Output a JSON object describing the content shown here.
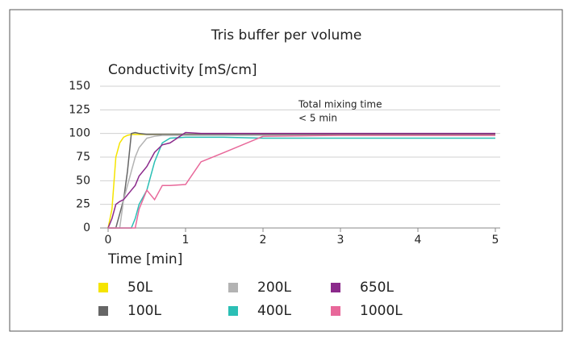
{
  "chart_data": {
    "type": "line",
    "title": "Tris buffer per volume",
    "y_label": "Conductivity [mS/cm]",
    "x_label": "Time [min]",
    "annotation": [
      "Total mixing time",
      "< 5 min"
    ],
    "x": [
      0,
      0.05,
      0.1,
      0.15,
      0.2,
      0.25,
      0.3,
      0.35,
      0.4,
      0.5,
      0.6,
      0.7,
      0.8,
      1,
      1.2,
      1.5,
      2,
      3,
      5
    ],
    "series": [
      {
        "name": "50L",
        "color": "#f5e400",
        "values": [
          0,
          20,
          75,
          90,
          96,
          98,
          99,
          99,
          99,
          99,
          99,
          99,
          99,
          99,
          99,
          99,
          99,
          99,
          99
        ]
      },
      {
        "name": "100L",
        "color": "#666666",
        "values": [
          0,
          0,
          0,
          15,
          30,
          60,
          100,
          101,
          100,
          99,
          99,
          99,
          99,
          99,
          99,
          99,
          99,
          99,
          99
        ]
      },
      {
        "name": "200L",
        "color": "#b3b3b3",
        "values": [
          0,
          0,
          0,
          0,
          30,
          45,
          60,
          75,
          85,
          95,
          97,
          98,
          98,
          98,
          98,
          98,
          98,
          98,
          98
        ]
      },
      {
        "name": "400L",
        "color": "#2bbfb5",
        "values": [
          0,
          0,
          0,
          0,
          0,
          0,
          0,
          10,
          25,
          40,
          70,
          90,
          95,
          96,
          96,
          96,
          95,
          95,
          95
        ]
      },
      {
        "name": "650L",
        "color": "#8b2a8b",
        "values": [
          0,
          10,
          25,
          28,
          30,
          35,
          40,
          45,
          55,
          65,
          80,
          88,
          90,
          101,
          100,
          100,
          100,
          100,
          100
        ]
      },
      {
        "name": "1000L",
        "color": "#e8689a",
        "values": [
          0,
          0,
          0,
          0,
          0,
          0,
          0,
          0,
          20,
          40,
          30,
          45,
          45,
          46,
          70,
          80,
          97,
          98,
          98
        ]
      }
    ],
    "xlim": [
      0,
      5
    ],
    "xticks": [
      0,
      1,
      2,
      3,
      4,
      5
    ],
    "ylim": [
      0,
      150
    ],
    "yticks": [
      0,
      25,
      50,
      75,
      100,
      125,
      150
    ],
    "grid": true
  }
}
